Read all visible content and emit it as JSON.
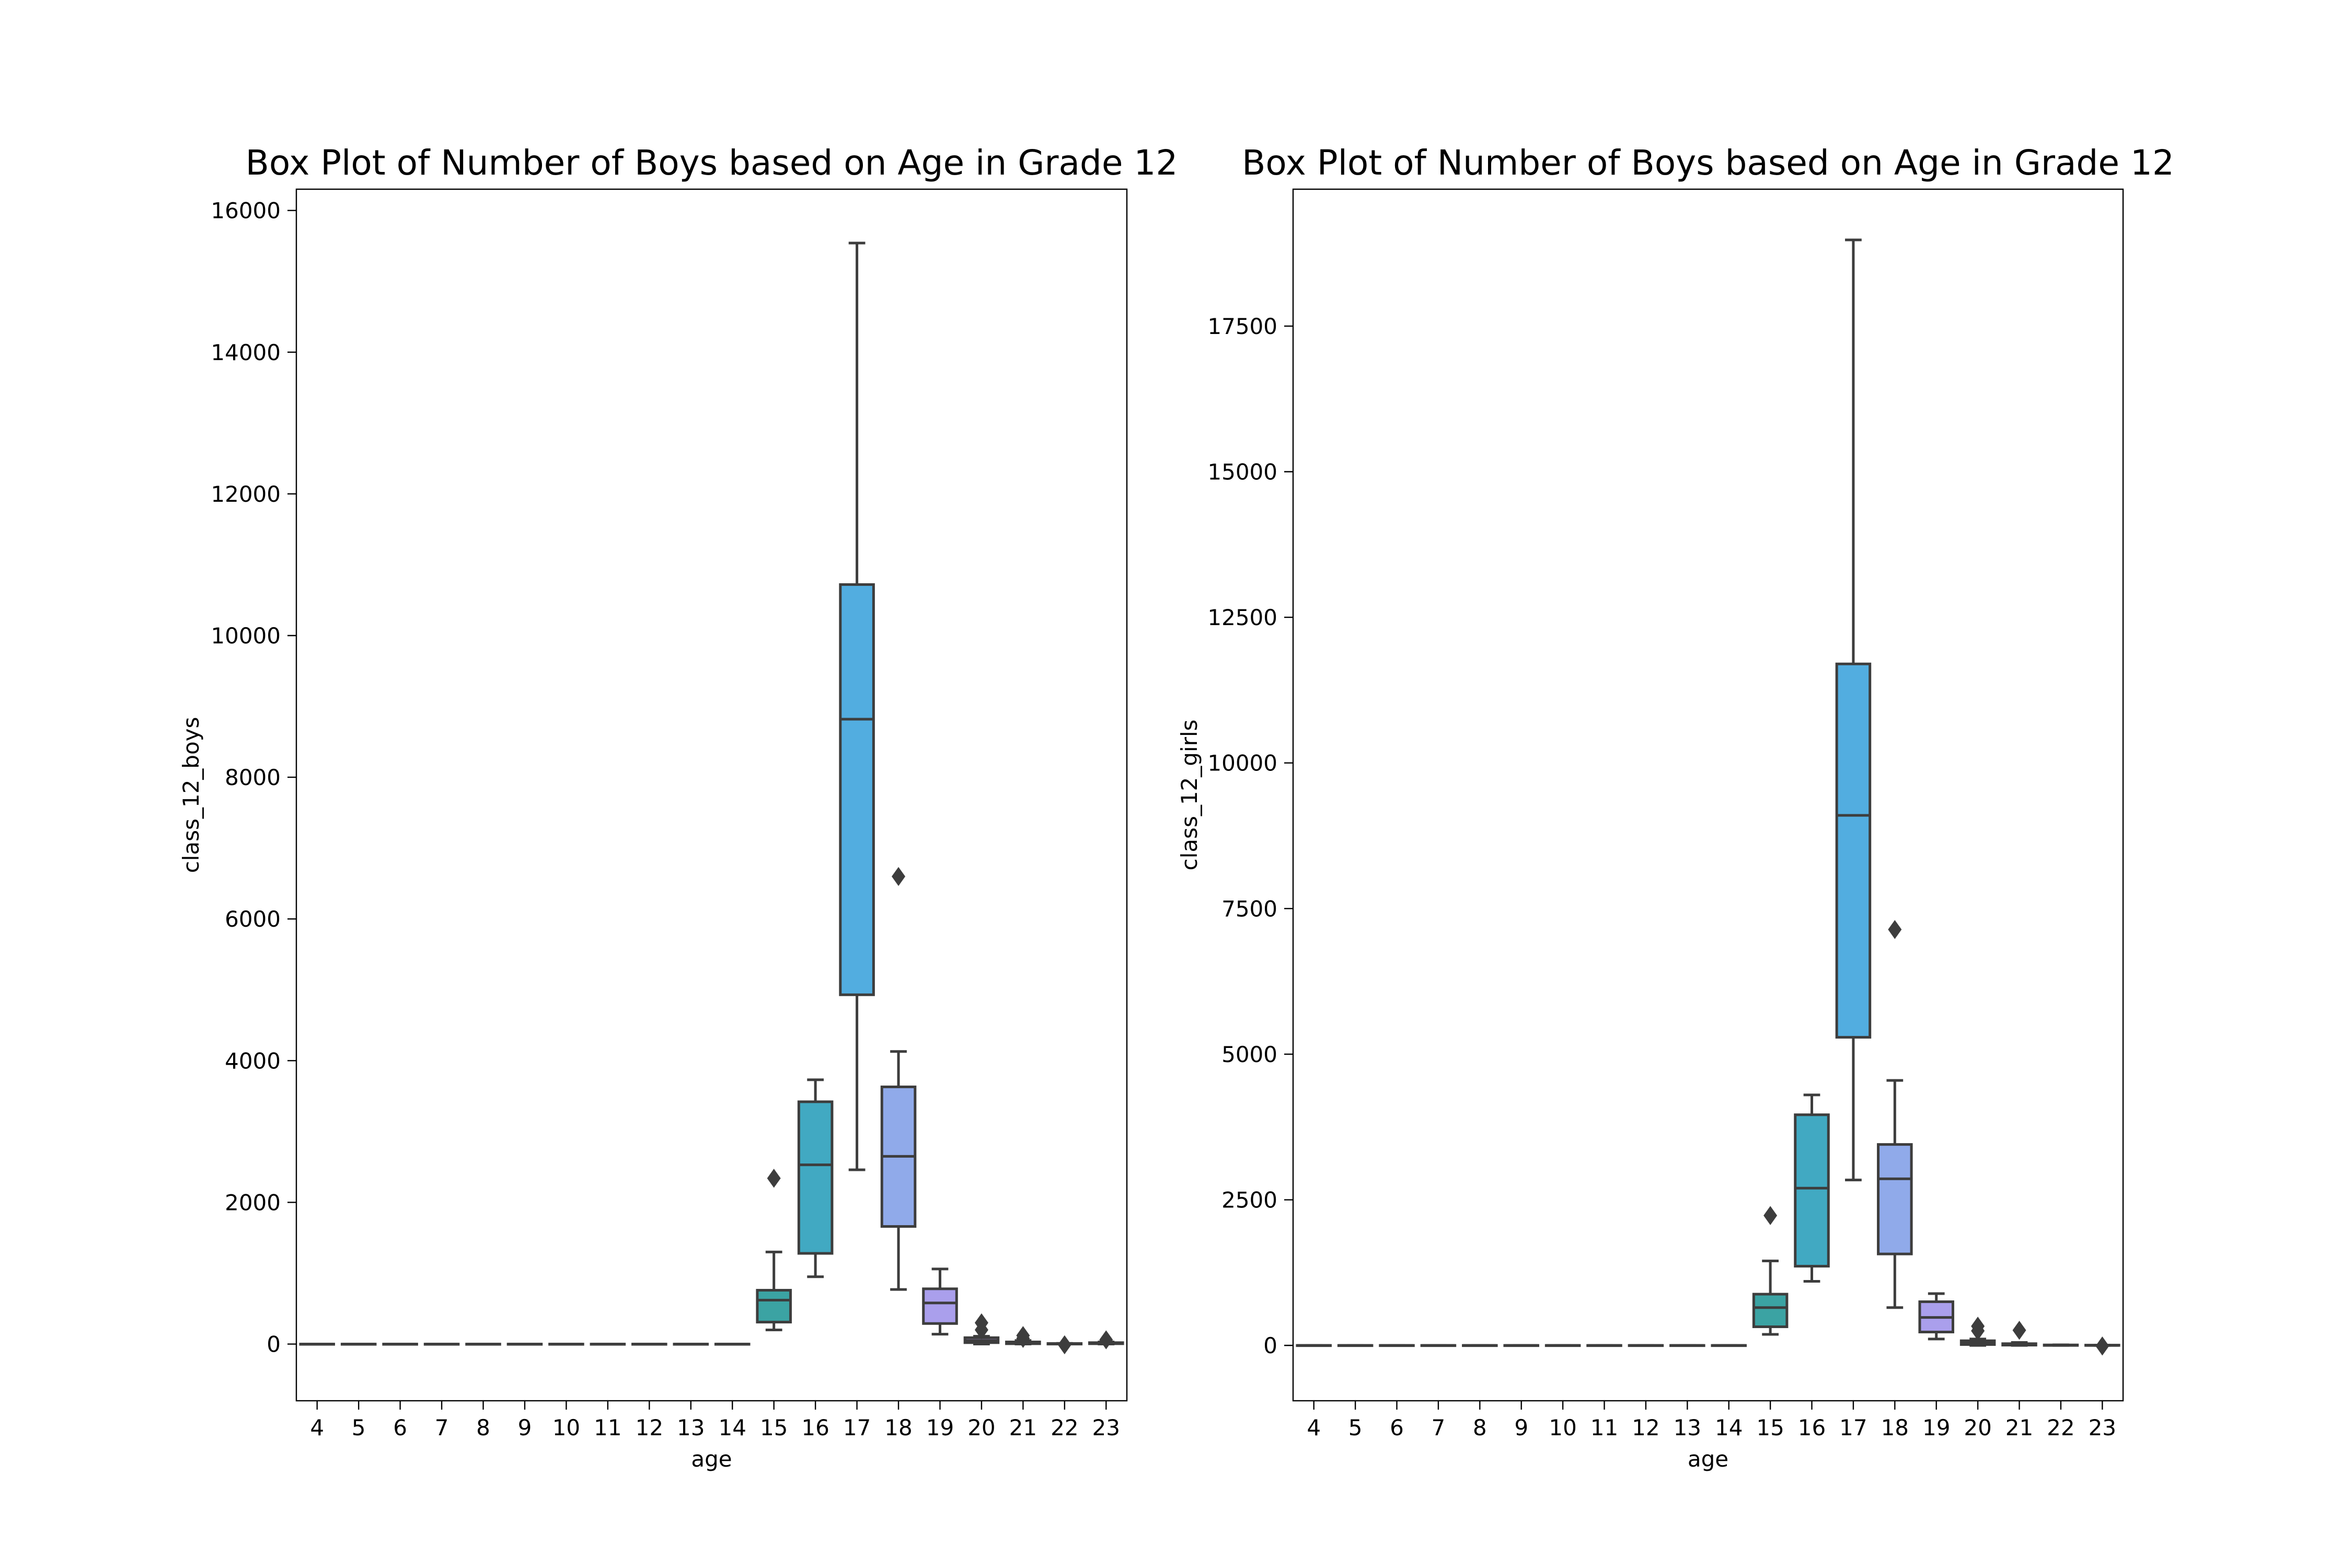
{
  "chart_data": [
    {
      "type": "box",
      "title": "Box Plot of Number of Boys based on Age in Grade 12",
      "xlabel": "age",
      "ylabel": "class_12_boys",
      "ylim": [
        -800,
        16300
      ],
      "yticks": [
        0,
        2000,
        4000,
        6000,
        8000,
        10000,
        12000,
        14000,
        16000
      ],
      "ytick_labels": [
        "0",
        "2000",
        "4000",
        "6000",
        "8000",
        "10000",
        "12000",
        "14000",
        "16000"
      ],
      "categories": [
        "4",
        "5",
        "6",
        "7",
        "8",
        "9",
        "10",
        "11",
        "12",
        "13",
        "14",
        "15",
        "16",
        "17",
        "18",
        "19",
        "20",
        "21",
        "22",
        "23"
      ],
      "boxes": [
        {
          "q1": 0,
          "median": 0,
          "q3": 0,
          "whisker_low": 0,
          "whisker_high": 0,
          "outliers": [],
          "color": "#3ba3a3"
        },
        {
          "q1": 0,
          "median": 0,
          "q3": 0,
          "whisker_low": 0,
          "whisker_high": 0,
          "outliers": [],
          "color": "#3ba3a3"
        },
        {
          "q1": 0,
          "median": 0,
          "q3": 0,
          "whisker_low": 0,
          "whisker_high": 0,
          "outliers": [],
          "color": "#3ba3a3"
        },
        {
          "q1": 0,
          "median": 0,
          "q3": 0,
          "whisker_low": 0,
          "whisker_high": 0,
          "outliers": [],
          "color": "#3ba3a3"
        },
        {
          "q1": 0,
          "median": 0,
          "q3": 0,
          "whisker_low": 0,
          "whisker_high": 0,
          "outliers": [],
          "color": "#3ba3a3"
        },
        {
          "q1": 0,
          "median": 0,
          "q3": 0,
          "whisker_low": 0,
          "whisker_high": 0,
          "outliers": [],
          "color": "#3ba3a3"
        },
        {
          "q1": 0,
          "median": 0,
          "q3": 0,
          "whisker_low": 0,
          "whisker_high": 0,
          "outliers": [],
          "color": "#3ba3a3"
        },
        {
          "q1": 0,
          "median": 0,
          "q3": 0,
          "whisker_low": 0,
          "whisker_high": 0,
          "outliers": [],
          "color": "#3ba3a3"
        },
        {
          "q1": 0,
          "median": 0,
          "q3": 0,
          "whisker_low": 0,
          "whisker_high": 0,
          "outliers": [],
          "color": "#3ba3a3"
        },
        {
          "q1": 0,
          "median": 0,
          "q3": 0,
          "whisker_low": 0,
          "whisker_high": 0,
          "outliers": [],
          "color": "#3ba3a3"
        },
        {
          "q1": 0,
          "median": 0,
          "q3": 0,
          "whisker_low": 0,
          "whisker_high": 0,
          "outliers": [],
          "color": "#3ba3a3"
        },
        {
          "q1": 310,
          "median": 620,
          "q3": 760,
          "whisker_low": 200,
          "whisker_high": 1300,
          "outliers": [
            2340
          ],
          "color": "#3ba3a3"
        },
        {
          "q1": 1280,
          "median": 2530,
          "q3": 3420,
          "whisker_low": 950,
          "whisker_high": 3730,
          "outliers": [],
          "color": "#41a9c2"
        },
        {
          "q1": 4930,
          "median": 8820,
          "q3": 10720,
          "whisker_low": 2460,
          "whisker_high": 15540,
          "outliers": [],
          "color": "#52ade0"
        },
        {
          "q1": 1660,
          "median": 2650,
          "q3": 3630,
          "whisker_low": 770,
          "whisker_high": 4130,
          "outliers": [
            6600
          ],
          "color": "#90aaea"
        },
        {
          "q1": 290,
          "median": 580,
          "q3": 780,
          "whisker_low": 140,
          "whisker_high": 1060,
          "outliers": [],
          "color": "#aa9fec"
        },
        {
          "q1": 20,
          "median": 50,
          "q3": 90,
          "whisker_low": 0,
          "whisker_high": 110,
          "outliers": [
            200,
            300
          ],
          "color": "#b59ae6"
        },
        {
          "q1": 5,
          "median": 15,
          "q3": 30,
          "whisker_low": 0,
          "whisker_high": 50,
          "outliers": [
            80,
            120
          ],
          "color": "#c196e0"
        },
        {
          "q1": 0,
          "median": 3,
          "q3": 8,
          "whisker_low": 0,
          "whisker_high": 10,
          "outliers": [
            -10
          ],
          "color": "#cc92d6"
        },
        {
          "q1": 5,
          "median": 10,
          "q3": 20,
          "whisker_low": 0,
          "whisker_high": 30,
          "outliers": [
            60
          ],
          "color": "#d690cb"
        }
      ]
    },
    {
      "type": "box",
      "title": "Box Plot of Number of Boys based on Age in Grade 12",
      "xlabel": "age",
      "ylabel": "class_12_girls",
      "ylim": [
        -950,
        19850
      ],
      "yticks": [
        0,
        2500,
        5000,
        7500,
        10000,
        12500,
        15000,
        17500
      ],
      "ytick_labels": [
        "0",
        "2500",
        "5000",
        "7500",
        "10000",
        "12500",
        "15000",
        "17500"
      ],
      "categories": [
        "4",
        "5",
        "6",
        "7",
        "8",
        "9",
        "10",
        "11",
        "12",
        "13",
        "14",
        "15",
        "16",
        "17",
        "18",
        "19",
        "20",
        "21",
        "22",
        "23"
      ],
      "boxes": [
        {
          "q1": 0,
          "median": 0,
          "q3": 0,
          "whisker_low": 0,
          "whisker_high": 0,
          "outliers": [],
          "color": "#3ba3a3"
        },
        {
          "q1": 0,
          "median": 0,
          "q3": 0,
          "whisker_low": 0,
          "whisker_high": 0,
          "outliers": [],
          "color": "#3ba3a3"
        },
        {
          "q1": 0,
          "median": 0,
          "q3": 0,
          "whisker_low": 0,
          "whisker_high": 0,
          "outliers": [],
          "color": "#3ba3a3"
        },
        {
          "q1": 0,
          "median": 0,
          "q3": 0,
          "whisker_low": 0,
          "whisker_high": 0,
          "outliers": [],
          "color": "#3ba3a3"
        },
        {
          "q1": 0,
          "median": 0,
          "q3": 0,
          "whisker_low": 0,
          "whisker_high": 0,
          "outliers": [],
          "color": "#3ba3a3"
        },
        {
          "q1": 0,
          "median": 0,
          "q3": 0,
          "whisker_low": 0,
          "whisker_high": 0,
          "outliers": [],
          "color": "#3ba3a3"
        },
        {
          "q1": 0,
          "median": 0,
          "q3": 0,
          "whisker_low": 0,
          "whisker_high": 0,
          "outliers": [],
          "color": "#3ba3a3"
        },
        {
          "q1": 0,
          "median": 0,
          "q3": 0,
          "whisker_low": 0,
          "whisker_high": 0,
          "outliers": [],
          "color": "#3ba3a3"
        },
        {
          "q1": 0,
          "median": 0,
          "q3": 0,
          "whisker_low": 0,
          "whisker_high": 0,
          "outliers": [],
          "color": "#3ba3a3"
        },
        {
          "q1": 0,
          "median": 0,
          "q3": 0,
          "whisker_low": 0,
          "whisker_high": 0,
          "outliers": [],
          "color": "#3ba3a3"
        },
        {
          "q1": 0,
          "median": 0,
          "q3": 0,
          "whisker_low": 0,
          "whisker_high": 0,
          "outliers": [],
          "color": "#3ba3a3"
        },
        {
          "q1": 320,
          "median": 650,
          "q3": 880,
          "whisker_low": 190,
          "whisker_high": 1450,
          "outliers": [
            2230
          ],
          "color": "#3ba3a3"
        },
        {
          "q1": 1360,
          "median": 2700,
          "q3": 3960,
          "whisker_low": 1100,
          "whisker_high": 4300,
          "outliers": [],
          "color": "#41a9c2"
        },
        {
          "q1": 5290,
          "median": 9100,
          "q3": 11700,
          "whisker_low": 2840,
          "whisker_high": 18980,
          "outliers": [],
          "color": "#52ade0"
        },
        {
          "q1": 1570,
          "median": 2860,
          "q3": 3450,
          "whisker_low": 650,
          "whisker_high": 4550,
          "outliers": [
            7140
          ],
          "color": "#90aaea"
        },
        {
          "q1": 230,
          "median": 480,
          "q3": 750,
          "whisker_low": 110,
          "whisker_high": 890,
          "outliers": [],
          "color": "#aa9fec"
        },
        {
          "q1": 15,
          "median": 40,
          "q3": 80,
          "whisker_low": 0,
          "whisker_high": 110,
          "outliers": [
            250,
            330
          ],
          "color": "#b59ae6"
        },
        {
          "q1": 5,
          "median": 15,
          "q3": 30,
          "whisker_low": 0,
          "whisker_high": 50,
          "outliers": [
            260
          ],
          "color": "#c196e0"
        },
        {
          "q1": 0,
          "median": 3,
          "q3": 8,
          "whisker_low": 0,
          "whisker_high": 10,
          "outliers": [],
          "color": "#cc92d6"
        },
        {
          "q1": 0,
          "median": 0,
          "q3": 5,
          "whisker_low": 0,
          "whisker_high": 5,
          "outliers": [
            -10
          ],
          "color": "#d690cb"
        }
      ]
    }
  ]
}
